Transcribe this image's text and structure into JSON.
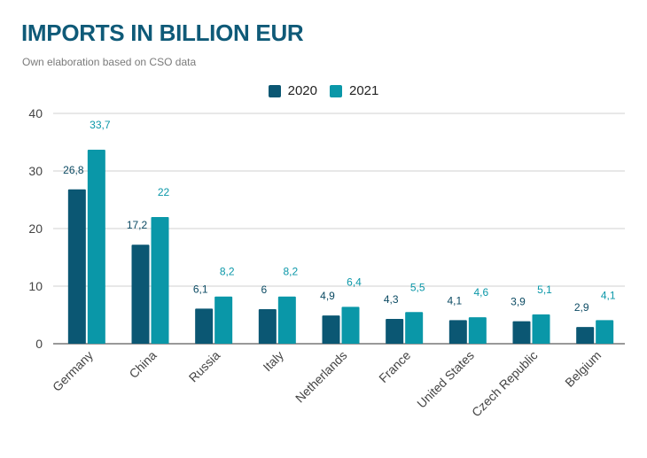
{
  "header": {
    "title": "IMPORTS IN BILLION EUR",
    "subtitle": "Own elaboration based on CSO data"
  },
  "chart_data": {
    "type": "bar",
    "categories": [
      "Germany",
      "China",
      "Russia",
      "Italy",
      "Netherlands",
      "France",
      "United States",
      "Czech Republic",
      "Belgium"
    ],
    "series": [
      {
        "name": "2020",
        "color": "#0b5773",
        "values": [
          26.8,
          17.2,
          6.1,
          6,
          4.9,
          4.3,
          4.1,
          3.9,
          2.9
        ],
        "labels": [
          "26,8",
          "17,2",
          "6,1",
          "6",
          "4,9",
          "4,3",
          "4,1",
          "3,9",
          "2,9"
        ],
        "label_color": "#0b4a63"
      },
      {
        "name": "2021",
        "color": "#0a97a8",
        "values": [
          33.7,
          22,
          8.2,
          8.2,
          6.4,
          5.5,
          4.6,
          5.1,
          4.1
        ],
        "labels": [
          "33,7",
          "22",
          "8,2",
          "8,2",
          "6,4",
          "5,5",
          "4,6",
          "5,1",
          "4,1"
        ],
        "label_color": "#0a97a8"
      }
    ],
    "ylim": [
      0,
      40
    ],
    "yticks": [
      "0",
      "10",
      "20",
      "30",
      "40"
    ],
    "ytick_values": [
      0,
      10,
      20,
      30,
      40
    ],
    "legend_position": "top-center",
    "grid": true
  }
}
